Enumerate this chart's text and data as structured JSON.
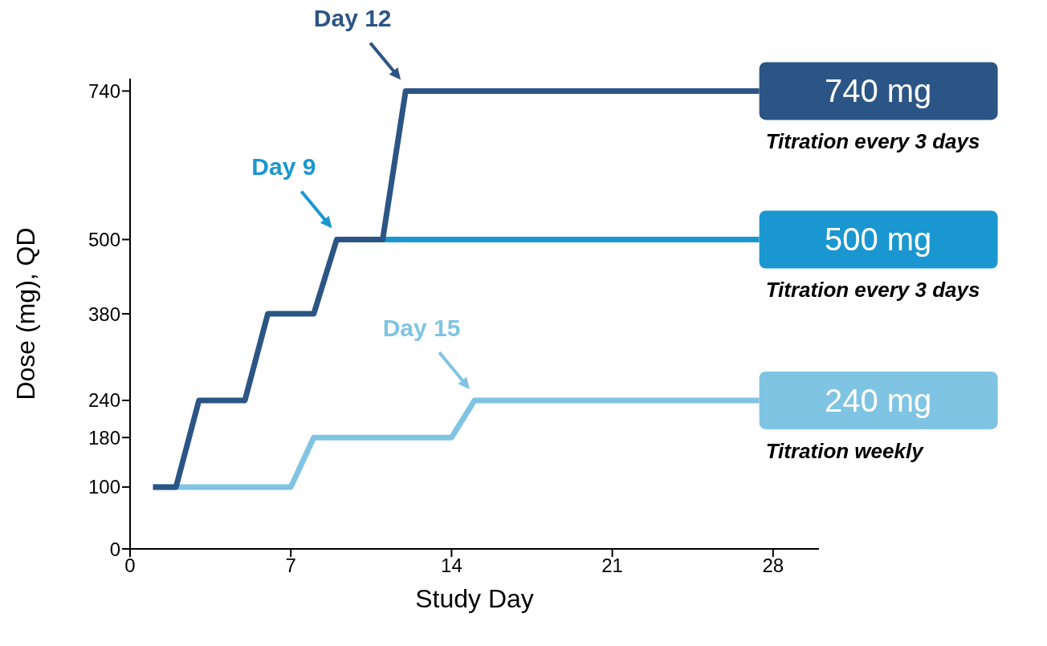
{
  "chart_data": {
    "type": "line",
    "xlabel": "Study Day",
    "ylabel": "Dose (mg), QD",
    "xlim": [
      0,
      30
    ],
    "xticks": [
      0,
      7,
      14,
      21,
      28
    ],
    "ylim": [
      0,
      760
    ],
    "yticks": [
      0,
      100,
      180,
      240,
      380,
      500,
      740
    ],
    "marker": "none",
    "series": [
      {
        "color": "#7fc4e2",
        "x": [
          1,
          7,
          8,
          14,
          15,
          27.4
        ],
        "values": [
          100,
          100,
          180,
          180,
          240,
          240
        ]
      },
      {
        "color": "#1a97d0",
        "x": [
          11,
          27.4
        ],
        "values": [
          500,
          500
        ]
      },
      {
        "color": "#2b5585",
        "x": [
          1,
          2,
          3,
          5,
          6,
          8,
          9,
          11,
          12,
          27.4
        ],
        "values": [
          100,
          100,
          240,
          240,
          380,
          380,
          500,
          500,
          740,
          740
        ]
      }
    ],
    "annotations": [
      {
        "text": "Day 12",
        "x": 12,
        "y": 740
      },
      {
        "text": "Day 9",
        "x": 9,
        "y": 500
      },
      {
        "text": "Day 15",
        "x": 15,
        "y": 240
      },
      {
        "text": "740 mg",
        "x": 27.4,
        "y": 740
      },
      {
        "text": "Titration every 3 days",
        "x": 27.4,
        "y": 740
      },
      {
        "text": "500 mg",
        "x": 27.4,
        "y": 500
      },
      {
        "text": "Titration every 3 days",
        "x": 27.4,
        "y": 500
      },
      {
        "text": "240 mg",
        "x": 27.4,
        "y": 240
      },
      {
        "text": "Titration weekly",
        "x": 27.4,
        "y": 240
      }
    ]
  }
}
